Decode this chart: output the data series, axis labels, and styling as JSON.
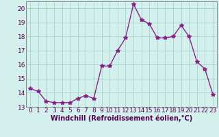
{
  "x": [
    0,
    1,
    2,
    3,
    4,
    5,
    6,
    7,
    8,
    9,
    10,
    11,
    12,
    13,
    14,
    15,
    16,
    17,
    18,
    19,
    20,
    21,
    22,
    23
  ],
  "y": [
    14.3,
    14.1,
    13.4,
    13.3,
    13.3,
    13.3,
    13.6,
    13.8,
    13.6,
    15.9,
    15.9,
    17.0,
    17.9,
    20.3,
    19.2,
    18.9,
    17.9,
    17.9,
    18.0,
    18.8,
    18.0,
    16.2,
    15.7,
    13.9
  ],
  "line_color": "#882288",
  "marker": "*",
  "marker_size": 4,
  "bg_color": "#d4f0ec",
  "grid_color": "#a8d8d0",
  "xlabel": "Windchill (Refroidissement éolien,°C)",
  "xlim": [
    -0.5,
    23.5
  ],
  "ylim": [
    13,
    20.5
  ],
  "yticks": [
    13,
    14,
    15,
    16,
    17,
    18,
    19,
    20
  ],
  "xticks": [
    0,
    1,
    2,
    3,
    4,
    5,
    6,
    7,
    8,
    9,
    10,
    11,
    12,
    13,
    14,
    15,
    16,
    17,
    18,
    19,
    20,
    21,
    22,
    23
  ],
  "tick_label_size": 6.5,
  "xlabel_size": 7,
  "line_width": 1.0,
  "spine_color": "#888888"
}
